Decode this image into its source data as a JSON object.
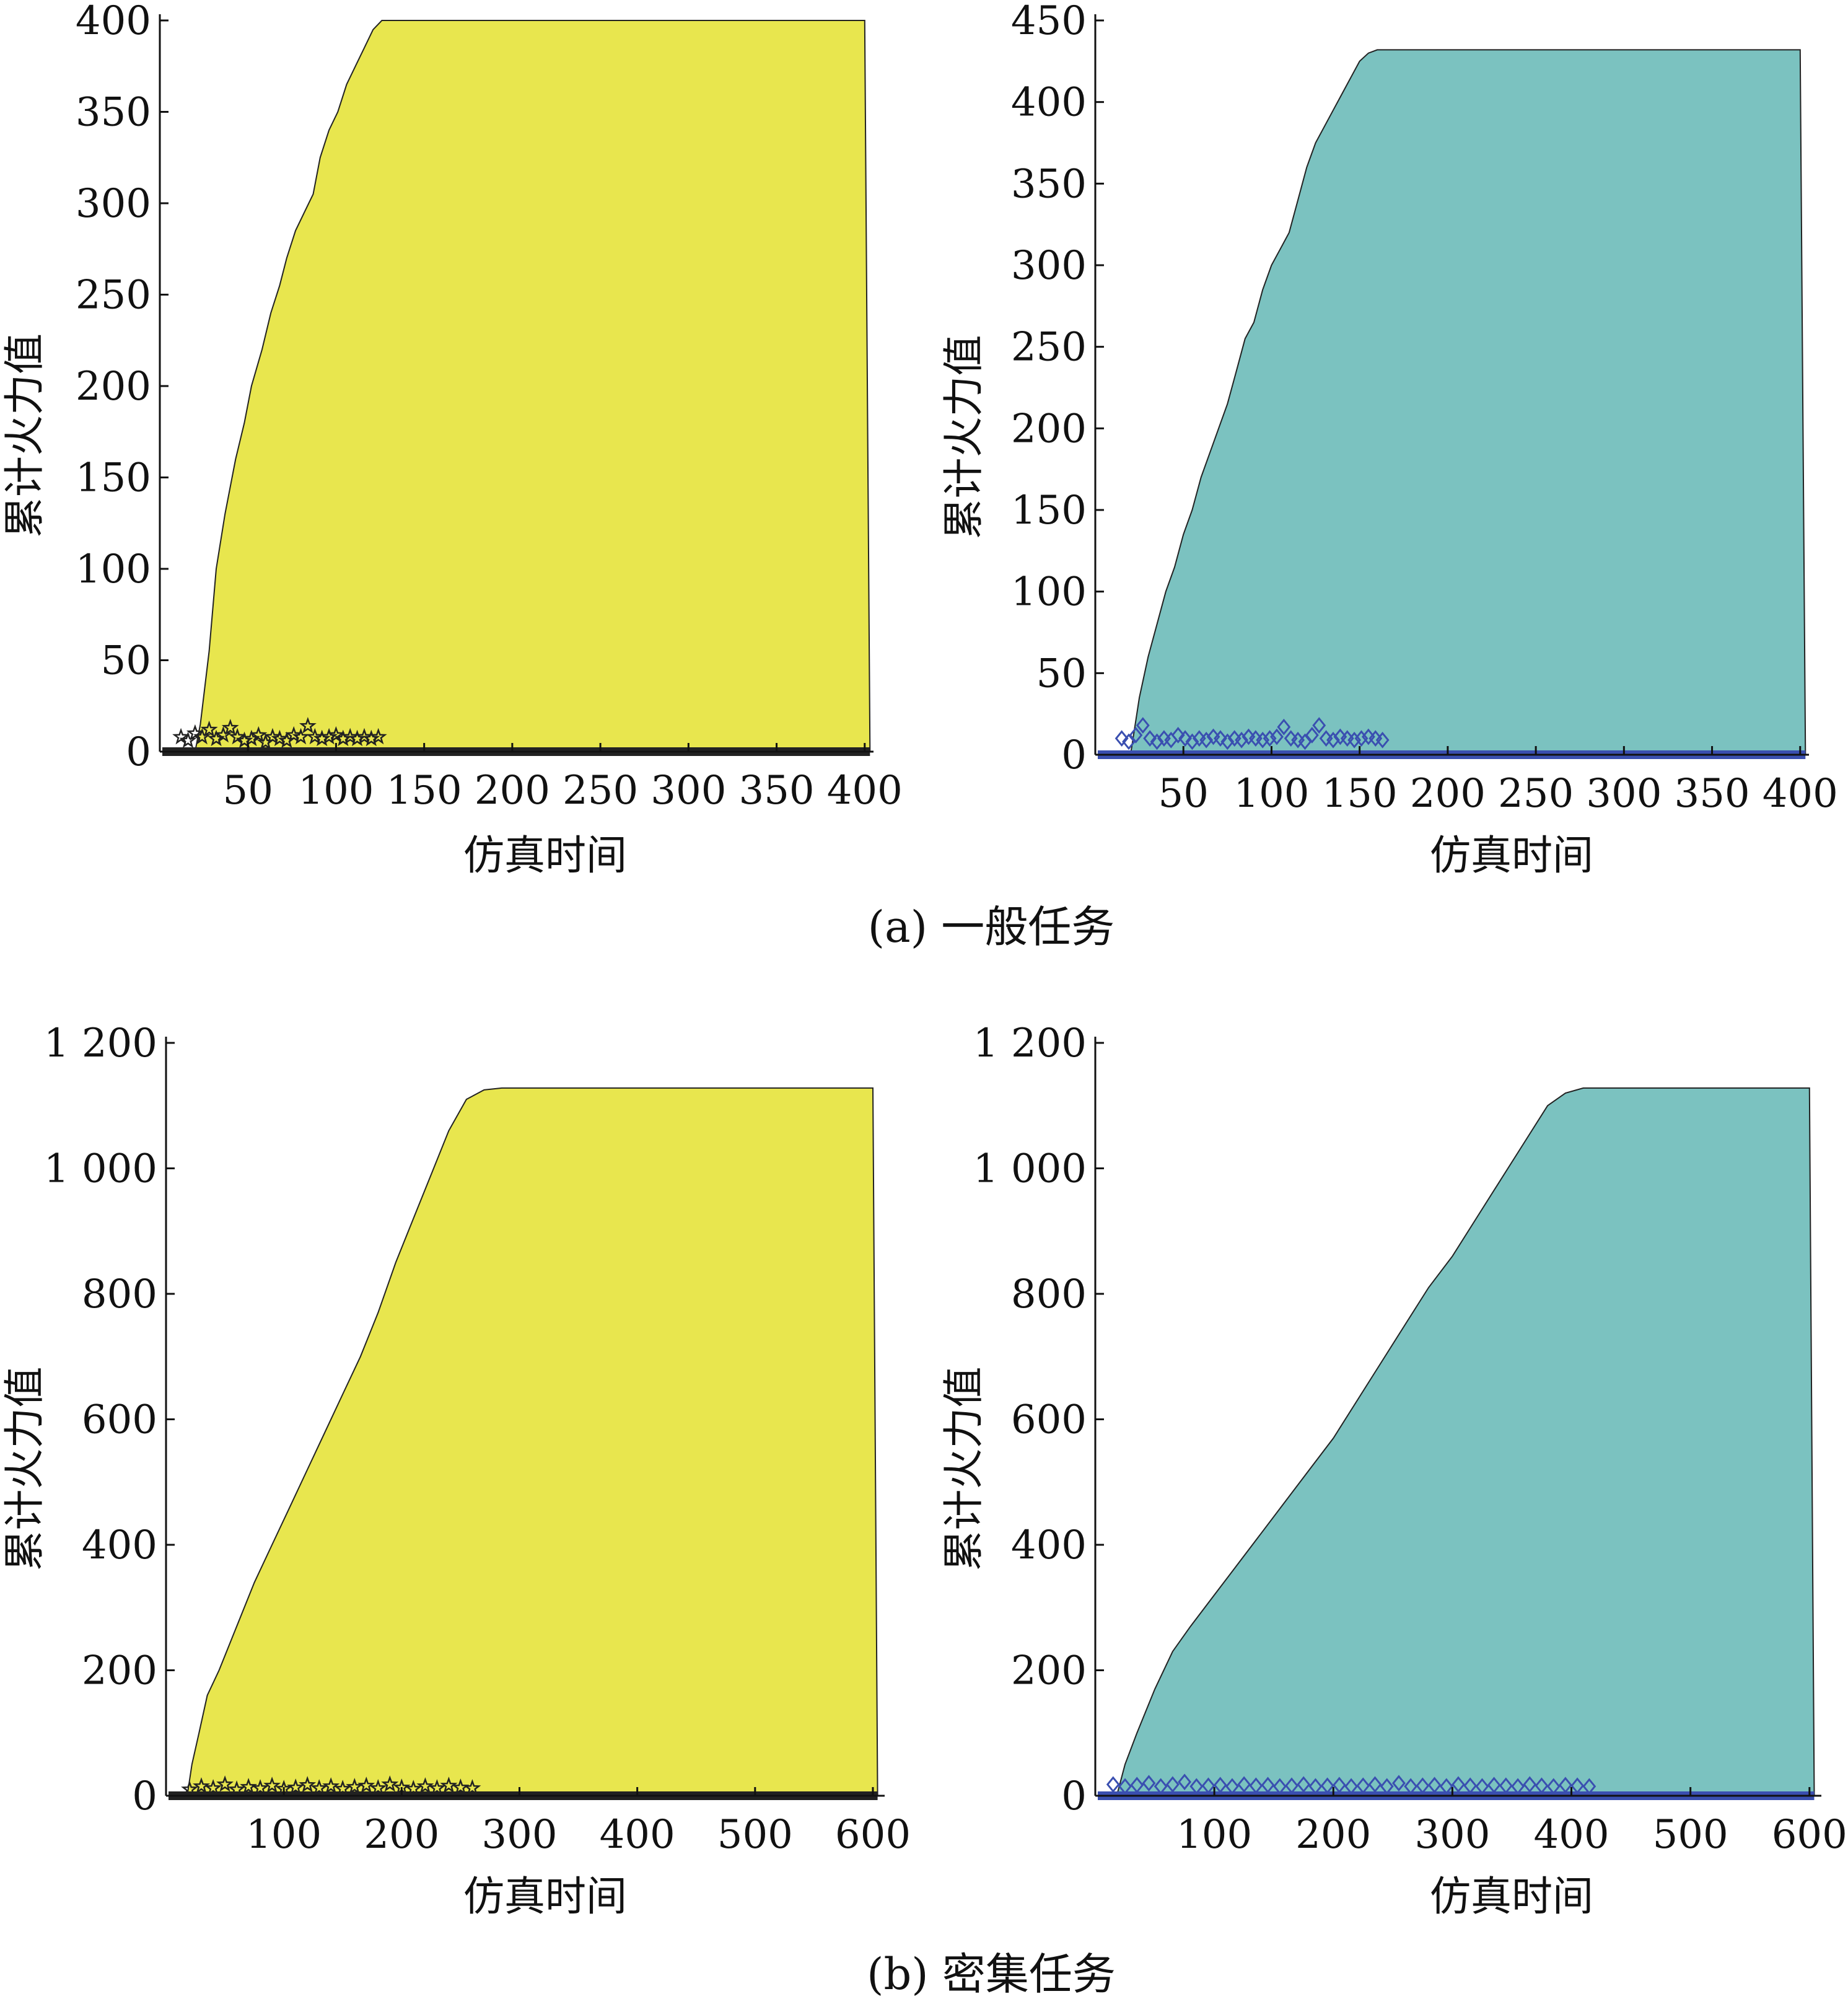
{
  "figure": {
    "captions": {
      "a": "(a) 一般任务",
      "b": "(b) 密集任务"
    }
  },
  "chart_data": [
    {
      "id": "a-left",
      "type": "area",
      "xlabel": "仿真时间",
      "ylabel": "累计火力值",
      "xlim": [
        0,
        405
      ],
      "ylim": [
        0,
        400
      ],
      "xticks": [
        50,
        100,
        150,
        200,
        250,
        300,
        350,
        400
      ],
      "xtick_labels": [
        "50",
        "100",
        "150",
        "200",
        "250",
        "300",
        "350",
        "400"
      ],
      "yticks": [
        0,
        50,
        100,
        150,
        200,
        250,
        300,
        350,
        400
      ],
      "ytick_labels": [
        "0",
        "50",
        "100",
        "150",
        "200",
        "250",
        "300",
        "350",
        "400"
      ],
      "fill_color": "#e8e64e",
      "marker_color": "#222222",
      "marker": "star",
      "curve": {
        "x": [
          20,
          23,
          28,
          32,
          37,
          43,
          48,
          52,
          58,
          63,
          68,
          72,
          77,
          82,
          87,
          91,
          96,
          101,
          106,
          111,
          116,
          121,
          126,
          400,
          403
        ],
        "y": [
          0,
          15,
          55,
          100,
          130,
          160,
          180,
          200,
          220,
          240,
          255,
          270,
          285,
          295,
          305,
          325,
          340,
          350,
          365,
          375,
          385,
          395,
          400,
          400,
          0
        ]
      },
      "markers": {
        "x": [
          12,
          16,
          20,
          24,
          28,
          32,
          36,
          40,
          44,
          48,
          52,
          56,
          60,
          64,
          68,
          72,
          76,
          80,
          84,
          88,
          92,
          96,
          100,
          104,
          108,
          112,
          116,
          120,
          124
        ],
        "y": [
          8,
          6,
          10,
          8,
          12,
          7,
          9,
          13,
          8,
          6,
          7,
          9,
          5,
          8,
          7,
          6,
          9,
          8,
          14,
          8,
          7,
          8,
          9,
          7,
          8,
          7,
          8,
          7,
          8
        ]
      }
    },
    {
      "id": "a-right",
      "type": "area",
      "xlabel": "仿真时间",
      "ylabel": "累计火力值",
      "xlim": [
        0,
        405
      ],
      "ylim": [
        0,
        450
      ],
      "xticks": [
        50,
        100,
        150,
        200,
        250,
        300,
        350,
        400
      ],
      "xtick_labels": [
        "50",
        "100",
        "150",
        "200",
        "250",
        "300",
        "350",
        "400"
      ],
      "yticks": [
        0,
        50,
        100,
        150,
        200,
        250,
        300,
        350,
        400,
        450
      ],
      "ytick_labels": [
        "0",
        "50",
        "100",
        "150",
        "200",
        "250",
        "300",
        "350",
        "400",
        "450"
      ],
      "fill_color": "#7bc2c0",
      "marker_color": "#3a4fb0",
      "marker": "diamond",
      "curve": {
        "x": [
          20,
          25,
          30,
          35,
          40,
          45,
          50,
          55,
          60,
          65,
          70,
          75,
          80,
          85,
          90,
          95,
          100,
          105,
          110,
          115,
          120,
          125,
          130,
          135,
          140,
          145,
          150,
          155,
          160,
          165,
          170,
          175,
          180,
          400,
          403
        ],
        "y": [
          0,
          35,
          60,
          80,
          100,
          115,
          135,
          150,
          170,
          185,
          200,
          215,
          235,
          255,
          265,
          285,
          300,
          310,
          320,
          340,
          360,
          375,
          385,
          395,
          405,
          415,
          425,
          430,
          432,
          432,
          432,
          432,
          432,
          432,
          0
        ]
      },
      "markers": {
        "x": [
          15,
          19,
          23,
          27,
          31,
          35,
          39,
          43,
          47,
          51,
          55,
          59,
          63,
          67,
          71,
          75,
          79,
          83,
          87,
          91,
          95,
          99,
          103,
          107,
          111,
          115,
          119,
          123,
          127,
          131,
          135,
          139,
          143,
          147,
          151,
          155,
          159,
          163
        ],
        "y": [
          10,
          8,
          12,
          18,
          10,
          8,
          10,
          9,
          12,
          10,
          8,
          10,
          9,
          11,
          10,
          8,
          10,
          9,
          11,
          10,
          9,
          10,
          11,
          17,
          10,
          9,
          8,
          12,
          18,
          10,
          9,
          11,
          10,
          9,
          10,
          11,
          10,
          9
        ]
      }
    },
    {
      "id": "b-left",
      "type": "area",
      "xlabel": "仿真时间",
      "ylabel": "累计火力值",
      "xlim": [
        0,
        610
      ],
      "ylim": [
        0,
        1200
      ],
      "xticks": [
        100,
        200,
        300,
        400,
        500,
        600
      ],
      "xtick_labels": [
        "100",
        "200",
        "300",
        "400",
        "500",
        "600"
      ],
      "yticks": [
        0,
        200,
        400,
        600,
        800,
        1000,
        1200
      ],
      "ytick_labels": [
        "0",
        "200",
        "400",
        "600",
        "800",
        "1 000",
        "1 200"
      ],
      "fill_color": "#e8e64e",
      "marker_color": "#222222",
      "marker": "star",
      "curve": {
        "x": [
          18,
          22,
          28,
          35,
          45,
          60,
          75,
          90,
          105,
          120,
          135,
          150,
          165,
          180,
          195,
          210,
          225,
          240,
          255,
          270,
          285,
          600,
          604
        ],
        "y": [
          0,
          50,
          100,
          160,
          200,
          270,
          340,
          400,
          460,
          520,
          580,
          640,
          700,
          770,
          850,
          920,
          990,
          1060,
          1110,
          1125,
          1128,
          1128,
          0
        ]
      },
      "markers": {
        "x": [
          20,
          30,
          40,
          50,
          60,
          70,
          80,
          90,
          100,
          110,
          120,
          130,
          140,
          150,
          160,
          170,
          180,
          190,
          200,
          210,
          220,
          230,
          240,
          250,
          260
        ],
        "y": [
          10,
          15,
          12,
          18,
          10,
          14,
          12,
          16,
          11,
          13,
          17,
          12,
          15,
          11,
          14,
          16,
          12,
          18,
          13,
          11,
          15,
          12,
          16,
          13,
          12
        ]
      }
    },
    {
      "id": "b-right",
      "type": "area",
      "xlabel": "仿真时间",
      "ylabel": "累计火力值",
      "xlim": [
        0,
        610
      ],
      "ylim": [
        0,
        1200
      ],
      "xticks": [
        100,
        200,
        300,
        400,
        500,
        600
      ],
      "xtick_labels": [
        "100",
        "200",
        "300",
        "400",
        "500",
        "600"
      ],
      "yticks": [
        0,
        200,
        400,
        600,
        800,
        1000,
        1200
      ],
      "ytick_labels": [
        "0",
        "200",
        "400",
        "600",
        "800",
        "1 000",
        "1 200"
      ],
      "fill_color": "#7bc2c0",
      "marker_color": "#3a4fb0",
      "marker": "diamond",
      "curve": {
        "x": [
          18,
          25,
          35,
          50,
          65,
          80,
          100,
          120,
          140,
          160,
          180,
          200,
          220,
          240,
          260,
          280,
          300,
          320,
          340,
          360,
          380,
          395,
          410,
          600,
          604
        ],
        "y": [
          0,
          50,
          100,
          170,
          230,
          270,
          320,
          370,
          420,
          470,
          520,
          570,
          630,
          690,
          750,
          810,
          860,
          920,
          980,
          1040,
          1100,
          1120,
          1128,
          1128,
          0
        ]
      },
      "markers": {
        "x": [
          15,
          25,
          35,
          45,
          55,
          65,
          75,
          85,
          95,
          105,
          115,
          125,
          135,
          145,
          155,
          165,
          175,
          185,
          195,
          205,
          215,
          225,
          235,
          245,
          255,
          265,
          275,
          285,
          295,
          305,
          315,
          325,
          335,
          345,
          355,
          365,
          375,
          385,
          395,
          405,
          415
        ],
        "y": [
          18,
          15,
          17,
          20,
          15,
          18,
          22,
          15,
          16,
          17,
          15,
          18,
          16,
          17,
          15,
          16,
          18,
          15,
          16,
          17,
          15,
          16,
          18,
          15,
          20,
          15,
          16,
          17,
          15,
          18,
          16,
          15,
          17,
          16,
          15,
          18,
          16,
          15,
          17,
          16,
          15
        ]
      }
    }
  ]
}
